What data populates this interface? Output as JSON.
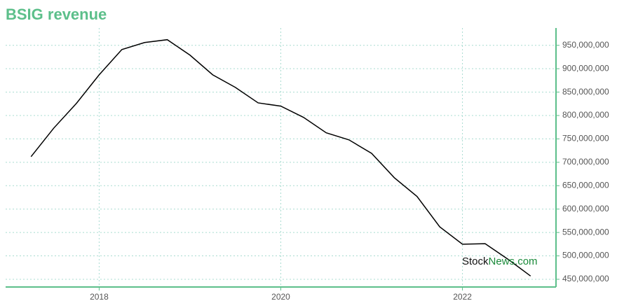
{
  "chart_data": {
    "type": "line",
    "title": "BSIG revenue",
    "x": [
      2017.25,
      2017.5,
      2017.75,
      2018.0,
      2018.25,
      2018.5,
      2018.75,
      2019.0,
      2019.25,
      2019.5,
      2019.75,
      2020.0,
      2020.25,
      2020.5,
      2020.75,
      2021.0,
      2021.25,
      2021.5,
      2021.75,
      2022.0,
      2022.25,
      2022.5,
      2022.75
    ],
    "series": [
      {
        "name": "BSIG revenue",
        "color": "#000000",
        "values": [
          712000000,
          773000000,
          826000000,
          887000000,
          941000000,
          956000000,
          962000000,
          929000000,
          887000000,
          860000000,
          827000000,
          820000000,
          796000000,
          763000000,
          748000000,
          719000000,
          667000000,
          627000000,
          562000000,
          525000000,
          526000000,
          493000000,
          457000000
        ]
      }
    ],
    "xlim": [
      2016.97,
      2023.03
    ],
    "xticks": [
      2018,
      2020,
      2022
    ],
    "ylim": [
      433500000,
      987000000
    ],
    "yticks": [
      {
        "value": 450000000,
        "label": "450,000,000"
      },
      {
        "value": 500000000,
        "label": "500,000,000"
      },
      {
        "value": 550000000,
        "label": "550,000,000"
      },
      {
        "value": 600000000,
        "label": "600,000,000"
      },
      {
        "value": 650000000,
        "label": "650,000,000"
      },
      {
        "value": 700000000,
        "label": "700,000,000"
      },
      {
        "value": 750000000,
        "label": "750,000,000"
      },
      {
        "value": 800000000,
        "label": "800,000,000"
      },
      {
        "value": 850000000,
        "label": "850,000,000"
      },
      {
        "value": 900000000,
        "label": "900,000,000"
      },
      {
        "value": 950000000,
        "label": "950,000,000"
      }
    ],
    "grid": true,
    "watermark": [
      "Stock",
      "News.com"
    ]
  }
}
